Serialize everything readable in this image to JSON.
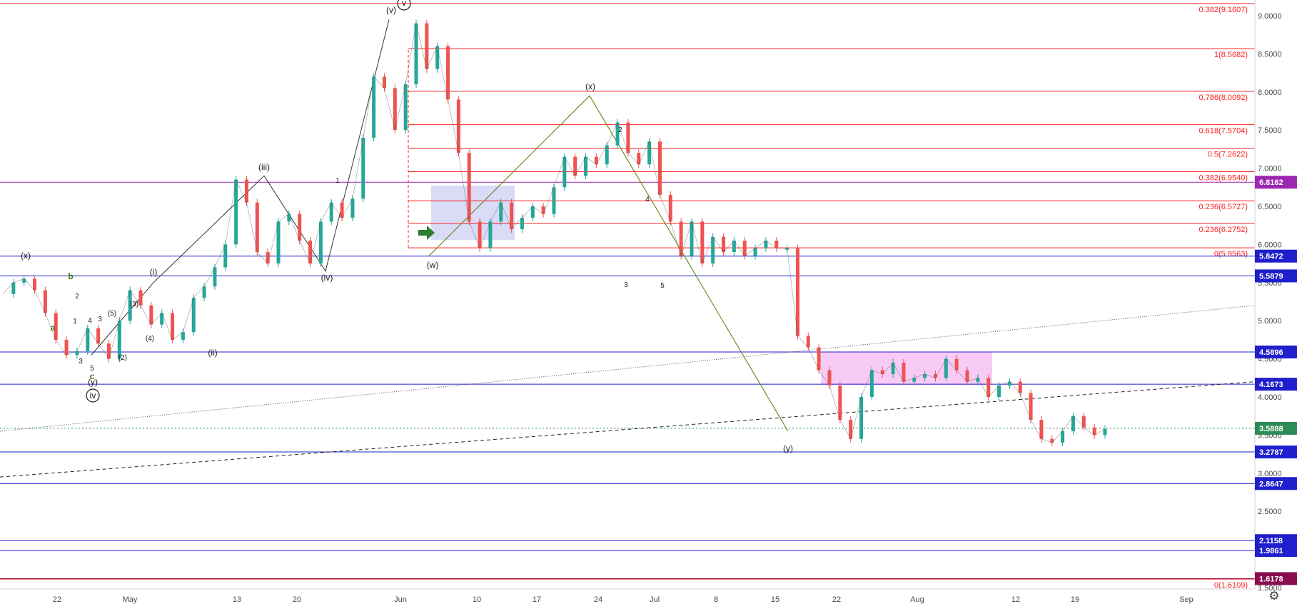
{
  "chart_data": {
    "type": "line",
    "title": "",
    "xlabel": "",
    "ylabel": "",
    "ylim": [
      1.55,
      9.25
    ],
    "y_ticks": [
      "9.0000",
      "8.5000",
      "8.0000",
      "7.5000",
      "7.0000",
      "6.5000",
      "6.0000",
      "5.5000",
      "5.0000",
      "4.5000",
      "4.0000",
      "3.5000",
      "3.0000",
      "2.5000",
      "2.0000",
      "1.5000"
    ],
    "x_ticks": [
      "22",
      "May",
      "13",
      "20",
      "Jun",
      "10",
      "17",
      "24",
      "Jul",
      "8",
      "15",
      "22",
      "Aug",
      "12",
      "19",
      "Sep"
    ],
    "price_series": {
      "name": "",
      "values": [
        5.35,
        5.5,
        5.55,
        5.4,
        5.1,
        4.75,
        4.55,
        4.6,
        4.9,
        4.7,
        4.5,
        5.0,
        5.4,
        5.2,
        4.95,
        5.1,
        4.75,
        4.85,
        5.3,
        5.45,
        5.7,
        6.0,
        6.85,
        6.55,
        5.9,
        5.75,
        6.3,
        6.4,
        6.05,
        5.75,
        6.3,
        6.55,
        6.35,
        6.6,
        7.4,
        8.2,
        8.05,
        7.5,
        8.1,
        8.9,
        8.3,
        8.6,
        7.9,
        7.2,
        6.3,
        5.95,
        6.3,
        6.55,
        6.2,
        6.35,
        6.5,
        6.4,
        6.75,
        7.15,
        6.9,
        7.15,
        7.05,
        7.3,
        7.6,
        7.2,
        7.05,
        7.35,
        6.65,
        6.3,
        5.85,
        6.3,
        5.75,
        6.1,
        5.9,
        6.05,
        5.85,
        5.95,
        6.05,
        5.95,
        5.95,
        4.8,
        4.65,
        4.35,
        4.15,
        3.7,
        3.45,
        4.0,
        4.35,
        4.3,
        4.45,
        4.2,
        4.25,
        4.3,
        4.25,
        4.5,
        4.35,
        4.2,
        4.25,
        4.0,
        4.15,
        4.2,
        4.05,
        3.7,
        3.45,
        3.4,
        3.55,
        3.75,
        3.6,
        3.5,
        3.58
      ]
    },
    "horizontal_levels": [
      {
        "label": "6.8162",
        "value": 6.8162,
        "color": "#9c27b0"
      },
      {
        "label": "5.8472",
        "value": 5.8472,
        "color": "#1f1fcc"
      },
      {
        "label": "5.5879",
        "value": 5.5879,
        "color": "#1f1fcc"
      },
      {
        "label": "4.5896",
        "value": 4.5896,
        "color": "#1f1fcc"
      },
      {
        "label": "4.1673",
        "value": 4.1673,
        "color": "#1f1fcc"
      },
      {
        "label": "3.5888",
        "value": 3.5888,
        "color": "#2e8b57"
      },
      {
        "label": "3.2787",
        "value": 3.2787,
        "color": "#1f1fcc"
      },
      {
        "label": "2.8647",
        "value": 2.8647,
        "color": "#1f1fcc"
      },
      {
        "label": "2.1158",
        "value": 2.1158,
        "color": "#1f1fcc"
      },
      {
        "label": "1.9861",
        "value": 1.9861,
        "color": "#1f1fcc"
      },
      {
        "label": "1.6178",
        "value": 1.6178,
        "color": "#880e4f"
      }
    ],
    "fib_levels": [
      {
        "label": "0.382(9.1607)",
        "value": 9.1607
      },
      {
        "label": "1(8.5682)",
        "value": 8.5682
      },
      {
        "label": "0.786(8.0092)",
        "value": 8.0092
      },
      {
        "label": "0.618(7.5704)",
        "value": 7.5704
      },
      {
        "label": "0.5(7.2622)",
        "value": 7.2622
      },
      {
        "label": "0.382(6.9540)",
        "value": 6.954
      },
      {
        "label": "0.236(6.5727)",
        "value": 6.5727
      },
      {
        "label": "0.236(6.2752)",
        "value": 6.2752
      },
      {
        "label": "0(5.9563)",
        "value": 5.9563
      },
      {
        "label": "0(1.6109)",
        "value": 1.6109
      }
    ],
    "wave_labels": [
      "(x)",
      "b",
      "2",
      "a",
      "1",
      "3",
      "4",
      "3",
      "5",
      "c",
      "(y)",
      "iv",
      "(i)",
      "(ii)",
      "(iii)",
      "(iv)",
      "(v)",
      "v",
      "(w)",
      "(x)",
      "(y)",
      "1",
      "2",
      "3",
      "4",
      "5",
      "(4)",
      "(2)",
      "(3)",
      "(5)"
    ],
    "colors": {
      "accent_fib": "#ff1f1f",
      "level_blue": "#1f1fcc",
      "level_purple": "#9c27b0",
      "wave_green": "#6b8e23",
      "candle_up": "#26a69a",
      "candle_down": "#ef5350"
    }
  },
  "icons": {
    "settings": "gear-icon",
    "arrow": "green-arrow-icon"
  }
}
